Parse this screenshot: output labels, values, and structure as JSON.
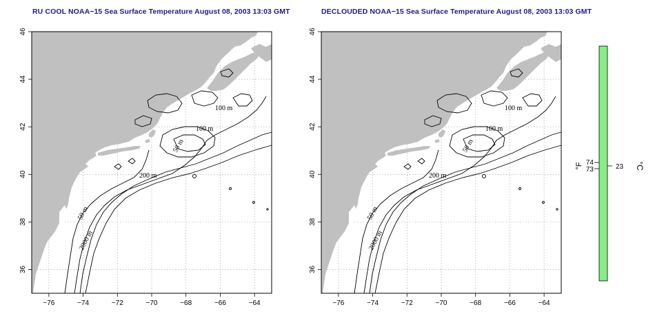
{
  "panels": [
    {
      "id": "left",
      "title": "RU COOL NOAA−15 Sea Surface Temperature August 08, 2003 13:03 GMT"
    },
    {
      "id": "right",
      "title": "DECLOUDED NOAA−15 Sea Surface Temperature August 08, 2003 13:03 GMT"
    }
  ],
  "axes": {
    "lon_ticks": [
      "−76",
      "−74",
      "−72",
      "−70",
      "−68",
      "−66",
      "−64"
    ],
    "lat_ticks": [
      "36",
      "38",
      "40",
      "42",
      "44",
      "46"
    ],
    "lon_range": [
      -77.0,
      -63.0
    ],
    "lat_range": [
      35.0,
      46.0
    ]
  },
  "contour_labels": [
    "100 m",
    "100 m",
    "50 m",
    "200 m",
    "50 m",
    "2000 m"
  ],
  "colors": {
    "land": "#c0c0c0",
    "contour": "#000000",
    "grid": "#999999",
    "scale_bar": "#88ee88",
    "title": "#1a1a8c"
  },
  "scale": {
    "fahrenheit_unit": "°F",
    "celsius_unit": "°C",
    "fahrenheit_ticks": [
      "74",
      "73"
    ],
    "celsius_ticks": [
      "23"
    ]
  }
}
